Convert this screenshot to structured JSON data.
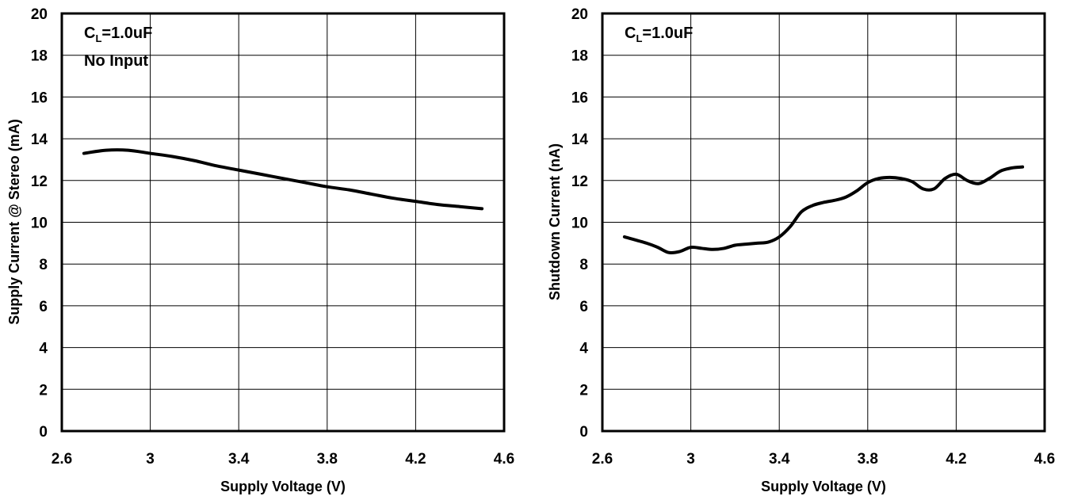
{
  "chart_data": [
    {
      "type": "line",
      "title": "",
      "xlabel": "Supply Voltage (V)",
      "ylabel": "Supply  Current @ Stereo (mA)",
      "xlim": [
        2.6,
        4.6
      ],
      "ylim": [
        0,
        20
      ],
      "x_ticks": [
        "2.6",
        "3",
        "3.4",
        "3.8",
        "4.2",
        "4.6"
      ],
      "y_ticks": [
        "0",
        "2",
        "4",
        "6",
        "8",
        "10",
        "12",
        "14",
        "16",
        "18",
        "20"
      ],
      "grid": true,
      "annotations": [
        {
          "main": "C",
          "sub": "L",
          "rest": "=1.0uF"
        },
        {
          "main": "No Input",
          "sub": "",
          "rest": ""
        }
      ],
      "series": [
        {
          "x": [
            2.7,
            2.8,
            2.9,
            3.0,
            3.1,
            3.2,
            3.3,
            3.4,
            3.5,
            3.6,
            3.7,
            3.8,
            3.9,
            4.0,
            4.1,
            4.2,
            4.3,
            4.4,
            4.5
          ],
          "y": [
            13.3,
            13.45,
            13.45,
            13.3,
            13.15,
            12.95,
            12.7,
            12.5,
            12.3,
            12.1,
            11.9,
            11.7,
            11.55,
            11.35,
            11.15,
            11.0,
            10.85,
            10.75,
            10.65
          ]
        }
      ]
    },
    {
      "type": "line",
      "title": "",
      "xlabel": "Supply Voltage (V)",
      "ylabel": "Shutdown  Current (nA)",
      "xlim": [
        2.6,
        4.6
      ],
      "ylim": [
        0,
        20
      ],
      "x_ticks": [
        "2.6",
        "3",
        "3.4",
        "3.8",
        "4.2",
        "4.6"
      ],
      "y_ticks": [
        "0",
        "2",
        "4",
        "6",
        "8",
        "10",
        "12",
        "14",
        "16",
        "18",
        "20"
      ],
      "grid": true,
      "annotations": [
        {
          "main": "C",
          "sub": "L",
          "rest": "=1.0uF"
        }
      ],
      "series": [
        {
          "x": [
            2.7,
            2.8,
            2.85,
            2.9,
            2.95,
            3.0,
            3.05,
            3.1,
            3.15,
            3.2,
            3.25,
            3.3,
            3.35,
            3.4,
            3.45,
            3.5,
            3.55,
            3.6,
            3.65,
            3.7,
            3.75,
            3.8,
            3.85,
            3.9,
            3.95,
            4.0,
            4.05,
            4.1,
            4.15,
            4.2,
            4.25,
            4.3,
            4.35,
            4.4,
            4.45,
            4.5
          ],
          "y": [
            9.3,
            9.0,
            8.8,
            8.55,
            8.6,
            8.8,
            8.75,
            8.7,
            8.75,
            8.9,
            8.95,
            9.0,
            9.05,
            9.3,
            9.8,
            10.5,
            10.8,
            10.95,
            11.05,
            11.2,
            11.5,
            11.9,
            12.1,
            12.15,
            12.1,
            11.95,
            11.6,
            11.6,
            12.1,
            12.3,
            12.0,
            11.85,
            12.1,
            12.45,
            12.6,
            12.65
          ]
        }
      ]
    }
  ]
}
